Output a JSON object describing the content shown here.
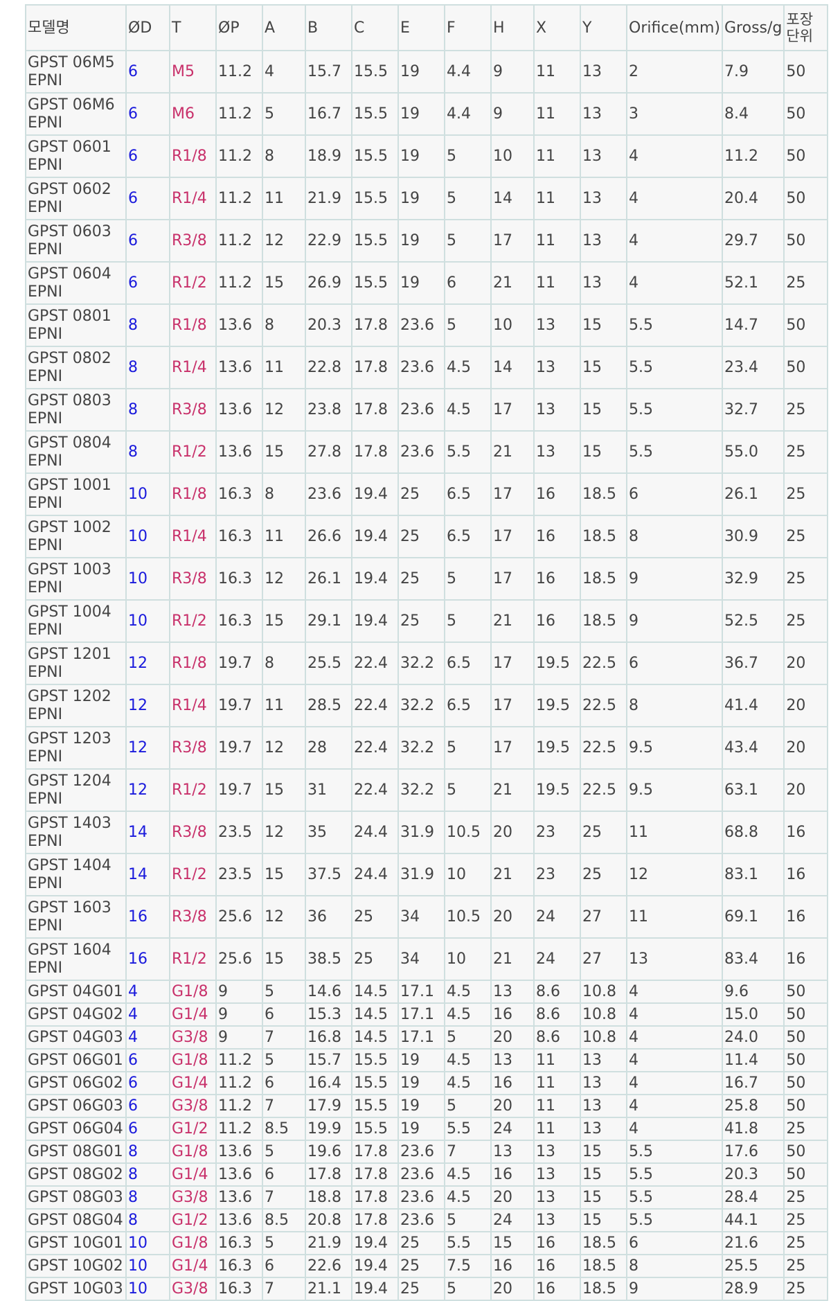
{
  "columns": [
    "모델명",
    "ØD",
    "T",
    "ØP",
    "A",
    "B",
    "C",
    "E",
    "F",
    "H",
    "X",
    "Y",
    "Orifice(mm)",
    "Gross/g",
    "포장 단위"
  ],
  "colors": {
    "od": "#1a1adc",
    "thread": "#c8306a",
    "border": "#cfdfdf",
    "background": "#f7f7f7",
    "text": "#444444"
  },
  "rows": [
    [
      "GPST 06M5 EPNI",
      "6",
      "M5",
      "11.2",
      "4",
      "15.7",
      "15.5",
      "19",
      "4.4",
      "9",
      "11",
      "13",
      "2",
      "7.9",
      "50"
    ],
    [
      "GPST 06M6 EPNI",
      "6",
      "M6",
      "11.2",
      "5",
      "16.7",
      "15.5",
      "19",
      "4.4",
      "9",
      "11",
      "13",
      "3",
      "8.4",
      "50"
    ],
    [
      "GPST 0601 EPNI",
      "6",
      "R1/8",
      "11.2",
      "8",
      "18.9",
      "15.5",
      "19",
      "5",
      "10",
      "11",
      "13",
      "4",
      "11.2",
      "50"
    ],
    [
      "GPST 0602 EPNI",
      "6",
      "R1/4",
      "11.2",
      "11",
      "21.9",
      "15.5",
      "19",
      "5",
      "14",
      "11",
      "13",
      "4",
      "20.4",
      "50"
    ],
    [
      "GPST 0603 EPNI",
      "6",
      "R3/8",
      "11.2",
      "12",
      "22.9",
      "15.5",
      "19",
      "5",
      "17",
      "11",
      "13",
      "4",
      "29.7",
      "50"
    ],
    [
      "GPST 0604 EPNI",
      "6",
      "R1/2",
      "11.2",
      "15",
      "26.9",
      "15.5",
      "19",
      "6",
      "21",
      "11",
      "13",
      "4",
      "52.1",
      "25"
    ],
    [
      "GPST 0801 EPNI",
      "8",
      "R1/8",
      "13.6",
      "8",
      "20.3",
      "17.8",
      "23.6",
      "5",
      "10",
      "13",
      "15",
      "5.5",
      "14.7",
      "50"
    ],
    [
      "GPST 0802 EPNI",
      "8",
      "R1/4",
      "13.6",
      "11",
      "22.8",
      "17.8",
      "23.6",
      "4.5",
      "14",
      "13",
      "15",
      "5.5",
      "23.4",
      "50"
    ],
    [
      "GPST 0803 EPNI",
      "8",
      "R3/8",
      "13.6",
      "12",
      "23.8",
      "17.8",
      "23.6",
      "4.5",
      "17",
      "13",
      "15",
      "5.5",
      "32.7",
      "25"
    ],
    [
      "GPST 0804 EPNI",
      "8",
      "R1/2",
      "13.6",
      "15",
      "27.8",
      "17.8",
      "23.6",
      "5.5",
      "21",
      "13",
      "15",
      "5.5",
      "55.0",
      "25"
    ],
    [
      "GPST 1001 EPNI",
      "10",
      "R1/8",
      "16.3",
      "8",
      "23.6",
      "19.4",
      "25",
      "6.5",
      "17",
      "16",
      "18.5",
      "6",
      "26.1",
      "25"
    ],
    [
      "GPST 1002 EPNI",
      "10",
      "R1/4",
      "16.3",
      "11",
      "26.6",
      "19.4",
      "25",
      "6.5",
      "17",
      "16",
      "18.5",
      "8",
      "30.9",
      "25"
    ],
    [
      "GPST 1003 EPNI",
      "10",
      "R3/8",
      "16.3",
      "12",
      "26.1",
      "19.4",
      "25",
      "5",
      "17",
      "16",
      "18.5",
      "9",
      "32.9",
      "25"
    ],
    [
      "GPST 1004 EPNI",
      "10",
      "R1/2",
      "16.3",
      "15",
      "29.1",
      "19.4",
      "25",
      "5",
      "21",
      "16",
      "18.5",
      "9",
      "52.5",
      "25"
    ],
    [
      "GPST 1201 EPNI",
      "12",
      "R1/8",
      "19.7",
      "8",
      "25.5",
      "22.4",
      "32.2",
      "6.5",
      "17",
      "19.5",
      "22.5",
      "6",
      "36.7",
      "20"
    ],
    [
      "GPST 1202 EPNI",
      "12",
      "R1/4",
      "19.7",
      "11",
      "28.5",
      "22.4",
      "32.2",
      "6.5",
      "17",
      "19.5",
      "22.5",
      "8",
      "41.4",
      "20"
    ],
    [
      "GPST 1203 EPNI",
      "12",
      "R3/8",
      "19.7",
      "12",
      "28",
      "22.4",
      "32.2",
      "5",
      "17",
      "19.5",
      "22.5",
      "9.5",
      "43.4",
      "20"
    ],
    [
      "GPST 1204 EPNI",
      "12",
      "R1/2",
      "19.7",
      "15",
      "31",
      "22.4",
      "32.2",
      "5",
      "21",
      "19.5",
      "22.5",
      "9.5",
      "63.1",
      "20"
    ],
    [
      "GPST 1403 EPNI",
      "14",
      "R3/8",
      "23.5",
      "12",
      "35",
      "24.4",
      "31.9",
      "10.5",
      "20",
      "23",
      "25",
      "11",
      "68.8",
      "16"
    ],
    [
      "GPST 1404 EPNI",
      "14",
      "R1/2",
      "23.5",
      "15",
      "37.5",
      "24.4",
      "31.9",
      "10",
      "21",
      "23",
      "25",
      "12",
      "83.1",
      "16"
    ],
    [
      "GPST 1603 EPNI",
      "16",
      "R3/8",
      "25.6",
      "12",
      "36",
      "25",
      "34",
      "10.5",
      "20",
      "24",
      "27",
      "11",
      "69.1",
      "16"
    ],
    [
      "GPST 1604 EPNI",
      "16",
      "R1/2",
      "25.6",
      "15",
      "38.5",
      "25",
      "34",
      "10",
      "21",
      "24",
      "27",
      "13",
      "83.4",
      "16"
    ],
    [
      "GPST 04G01",
      "4",
      "G1/8",
      "9",
      "5",
      "14.6",
      "14.5",
      "17.1",
      "4.5",
      "13",
      "8.6",
      "10.8",
      "4",
      "9.6",
      "50"
    ],
    [
      "GPST 04G02",
      "4",
      "G1/4",
      "9",
      "6",
      "15.3",
      "14.5",
      "17.1",
      "4.5",
      "16",
      "8.6",
      "10.8",
      "4",
      "15.0",
      "50"
    ],
    [
      "GPST 04G03",
      "4",
      "G3/8",
      "9",
      "7",
      "16.8",
      "14.5",
      "17.1",
      "5",
      "20",
      "8.6",
      "10.8",
      "4",
      "24.0",
      "50"
    ],
    [
      "GPST 06G01",
      "6",
      "G1/8",
      "11.2",
      "5",
      "15.7",
      "15.5",
      "19",
      "4.5",
      "13",
      "11",
      "13",
      "4",
      "11.4",
      "50"
    ],
    [
      "GPST 06G02",
      "6",
      "G1/4",
      "11.2",
      "6",
      "16.4",
      "15.5",
      "19",
      "4.5",
      "16",
      "11",
      "13",
      "4",
      "16.7",
      "50"
    ],
    [
      "GPST 06G03",
      "6",
      "G3/8",
      "11.2",
      "7",
      "17.9",
      "15.5",
      "19",
      "5",
      "20",
      "11",
      "13",
      "4",
      "25.8",
      "50"
    ],
    [
      "GPST 06G04",
      "6",
      "G1/2",
      "11.2",
      "8.5",
      "19.9",
      "15.5",
      "19",
      "5.5",
      "24",
      "11",
      "13",
      "4",
      "41.8",
      "25"
    ],
    [
      "GPST 08G01",
      "8",
      "G1/8",
      "13.6",
      "5",
      "19.6",
      "17.8",
      "23.6",
      "7",
      "13",
      "13",
      "15",
      "5.5",
      "17.6",
      "50"
    ],
    [
      "GPST 08G02",
      "8",
      "G1/4",
      "13.6",
      "6",
      "17.8",
      "17.8",
      "23.6",
      "4.5",
      "16",
      "13",
      "15",
      "5.5",
      "20.3",
      "50"
    ],
    [
      "GPST 08G03",
      "8",
      "G3/8",
      "13.6",
      "7",
      "18.8",
      "17.8",
      "23.6",
      "4.5",
      "20",
      "13",
      "15",
      "5.5",
      "28.4",
      "25"
    ],
    [
      "GPST 08G04",
      "8",
      "G1/2",
      "13.6",
      "8.5",
      "20.8",
      "17.8",
      "23.6",
      "5",
      "24",
      "13",
      "15",
      "5.5",
      "44.1",
      "25"
    ],
    [
      "GPST 10G01",
      "10",
      "G1/8",
      "16.3",
      "5",
      "21.9",
      "19.4",
      "25",
      "5.5",
      "15",
      "16",
      "18.5",
      "6",
      "21.6",
      "25"
    ],
    [
      "GPST 10G02",
      "10",
      "G1/4",
      "16.3",
      "6",
      "22.6",
      "19.4",
      "25",
      "7.5",
      "16",
      "16",
      "18.5",
      "8",
      "25.5",
      "25"
    ],
    [
      "GPST 10G03",
      "10",
      "G3/8",
      "16.3",
      "7",
      "21.1",
      "19.4",
      "25",
      "5",
      "20",
      "16",
      "18.5",
      "9",
      "28.9",
      "25"
    ]
  ]
}
